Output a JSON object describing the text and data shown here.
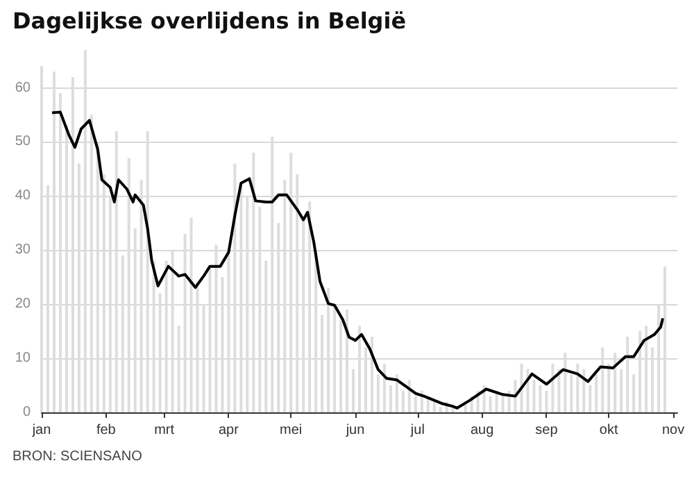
{
  "chart_data": {
    "type": "bar",
    "title": "Dagelijkse overlijdens in België",
    "annotations": [
      "BRON: SCIENSANO"
    ],
    "xlim": [
      "--01-01",
      "--11-03"
    ],
    "xticks": [
      {
        "value": "--01-01",
        "label": "jan"
      },
      {
        "value": "--02-01",
        "label": "feb"
      },
      {
        "value": "--03-01",
        "label": "mrt"
      },
      {
        "value": "--04-01",
        "label": "apr"
      },
      {
        "value": "--05-01",
        "label": "mei"
      },
      {
        "value": "--06-01",
        "label": "jun"
      },
      {
        "value": "--07-01",
        "label": "jul"
      },
      {
        "value": "--08-01",
        "label": "aug"
      },
      {
        "value": "--09-01",
        "label": "sep"
      },
      {
        "value": "--10-01",
        "label": "okt"
      },
      {
        "value": "--11-01",
        "label": "nov"
      }
    ],
    "ylim": [
      0,
      67
    ],
    "yticks": [
      0,
      10,
      20,
      30,
      40,
      50,
      60
    ],
    "grid": "y",
    "series": [
      {
        "color": "#dddddd",
        "x": [
          "--01-01",
          "--01-04",
          "--01-07",
          "--01-10",
          "--01-13",
          "--01-16",
          "--01-19",
          "--01-22",
          "--01-25",
          "--01-28",
          "--01-31",
          "--02-03",
          "--02-06",
          "--02-09",
          "--02-12",
          "--02-15",
          "--02-18",
          "--02-21",
          "--02-24",
          "--02-27",
          "--03-02",
          "--03-05",
          "--03-08",
          "--03-11",
          "--03-14",
          "--03-17",
          "--03-20",
          "--03-23",
          "--03-26",
          "--03-29",
          "--04-01",
          "--04-04",
          "--04-07",
          "--04-10",
          "--04-13",
          "--04-16",
          "--04-19",
          "--04-22",
          "--04-25",
          "--04-28",
          "--05-01",
          "--05-04",
          "--05-07",
          "--05-10",
          "--05-13",
          "--05-16",
          "--05-19",
          "--05-22",
          "--05-25",
          "--05-28",
          "--05-31",
          "--06-03",
          "--06-06",
          "--06-09",
          "--06-12",
          "--06-15",
          "--06-18",
          "--06-21",
          "--06-24",
          "--06-27",
          "--06-30",
          "--07-03",
          "--07-06",
          "--07-09",
          "--07-12",
          "--07-15",
          "--07-18",
          "--07-21",
          "--07-24",
          "--07-27",
          "--07-30",
          "--08-02",
          "--08-05",
          "--08-08",
          "--08-11",
          "--08-14",
          "--08-17",
          "--08-20",
          "--08-23",
          "--08-26",
          "--08-29",
          "--09-01",
          "--09-04",
          "--09-07",
          "--09-10",
          "--09-13",
          "--09-16",
          "--09-19",
          "--09-22",
          "--09-25",
          "--09-28",
          "--10-01",
          "--10-04",
          "--10-07",
          "--10-10",
          "--10-13",
          "--10-16",
          "--10-19",
          "--10-22",
          "--10-25",
          "--10-28"
        ],
        "values": [
          64,
          42,
          63,
          59,
          53,
          62,
          46,
          67,
          55,
          50,
          44,
          40,
          52,
          29,
          47,
          34,
          43,
          52,
          28,
          22,
          28,
          30,
          16,
          33,
          36,
          24,
          20,
          27,
          31,
          25,
          30,
          46,
          42,
          40,
          48,
          38,
          28,
          51,
          35,
          43,
          48,
          44,
          36,
          39,
          30,
          18,
          23,
          20,
          17,
          19,
          8,
          16,
          12,
          14,
          7,
          9,
          5,
          7,
          4,
          6,
          3,
          4,
          3,
          2,
          1,
          2,
          1,
          0,
          2,
          3,
          4,
          5,
          3,
          4,
          3,
          4,
          6,
          9,
          8,
          6,
          5,
          4,
          9,
          8,
          11,
          7,
          9,
          8,
          5,
          7,
          12,
          9,
          11,
          8,
          14,
          7,
          15,
          16,
          12,
          20,
          27
        ]
      },
      {
        "type": "line",
        "color": "#000000",
        "x": [
          "--01-06",
          "--01-10",
          "--01-14",
          "--01-17",
          "--01-20",
          "--01-24",
          "--01-28",
          "--01-30",
          "--02-03",
          "--02-05",
          "--02-07",
          "--02-11",
          "--02-14",
          "--02-15",
          "--02-19",
          "--02-21",
          "--02-23",
          "--02-26",
          "--03-03",
          "--03-08",
          "--03-11",
          "--03-16",
          "--03-20",
          "--03-23",
          "--03-28",
          "--04-01",
          "--04-04",
          "--04-07",
          "--04-11",
          "--04-14",
          "--04-19",
          "--04-22",
          "--04-25",
          "--04-29",
          "--05-04",
          "--05-07",
          "--05-09",
          "--05-12",
          "--05-15",
          "--05-19",
          "--05-22",
          "--05-26",
          "--05-29",
          "--06-01",
          "--06-04",
          "--06-08",
          "--06-12",
          "--06-16",
          "--06-21",
          "--06-25",
          "--06-30",
          "--07-04",
          "--07-11",
          "--07-13",
          "--07-18",
          "--07-20",
          "--07-26",
          "--08-03",
          "--08-11",
          "--08-17",
          "--08-25",
          "--09-01",
          "--09-09",
          "--09-16",
          "--09-21",
          "--09-27",
          "--10-03",
          "--10-09",
          "--10-13",
          "--10-18",
          "--10-23",
          "--10-26",
          "--10-27"
        ],
        "values": [
          55.4,
          55.5,
          51.4,
          49,
          52.4,
          54,
          48.6,
          43,
          41.6,
          38.9,
          43,
          41.3,
          38.9,
          40.2,
          38.3,
          34,
          28,
          23.4,
          27,
          25.2,
          25.5,
          23.1,
          25.2,
          27,
          27,
          29.6,
          36.4,
          42.4,
          43.2,
          39.1,
          38.9,
          38.9,
          40.2,
          40.2,
          37.5,
          35.6,
          37,
          31.5,
          24.2,
          20.1,
          19.8,
          17.1,
          13.9,
          13.3,
          14.4,
          11.7,
          7.9,
          6.3,
          6,
          4.9,
          3.5,
          3,
          1.9,
          1.6,
          1.1,
          0.8,
          2.2,
          4.3,
          3.3,
          3,
          7.1,
          5.2,
          7.9,
          7.1,
          5.7,
          8.4,
          8.2,
          10.3,
          10.3,
          13.3,
          14.4,
          15.8,
          17.4
        ]
      }
    ]
  }
}
